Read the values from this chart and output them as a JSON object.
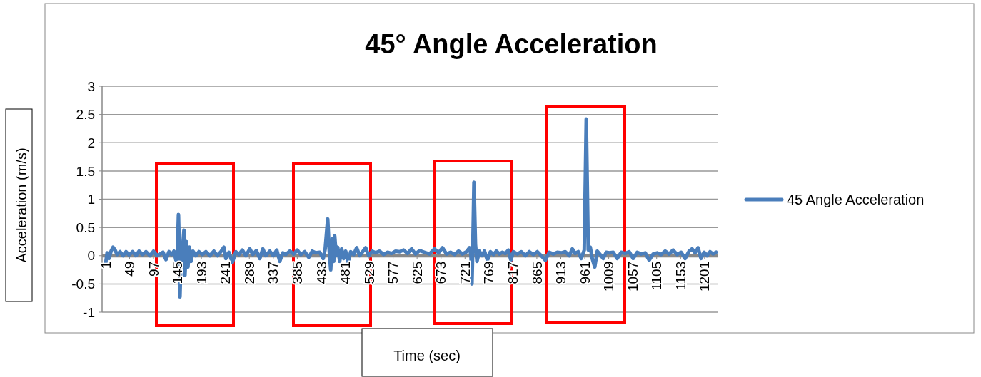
{
  "chart_data": {
    "type": "line",
    "title": "45° Angle Acceleration",
    "xlabel": "Time (sec)",
    "ylabel": "Acceleration (m/s)",
    "xlim": [
      -6,
      1227
    ],
    "xticks": [
      1,
      49,
      97,
      145,
      193,
      241,
      289,
      337,
      385,
      433,
      481,
      529,
      577,
      625,
      673,
      721,
      769,
      817,
      865,
      913,
      961,
      1009,
      1057,
      1105,
      1153,
      1201
    ],
    "ylim": [
      -1,
      3
    ],
    "yticks": [
      -1,
      -0.5,
      0,
      0.5,
      1,
      1.5,
      2,
      2.5,
      3
    ],
    "grid": "y",
    "legend": "right",
    "line_style": "solid",
    "series": [
      {
        "name": "45 Angle Acceleration",
        "color": "#4a7ebb",
        "x": [
          1,
          4,
          8,
          12,
          16,
          20,
          24,
          30,
          36,
          42,
          48,
          55,
          62,
          68,
          75,
          82,
          90,
          97,
          104,
          110,
          116,
          122,
          128,
          133,
          138,
          142,
          145,
          147,
          149,
          150,
          152,
          155,
          158,
          160,
          163,
          166,
          169,
          172,
          176,
          182,
          188,
          195,
          202,
          210,
          218,
          225,
          232,
          238,
          242,
          248,
          255,
          262,
          268,
          275,
          282,
          290,
          296,
          303,
          310,
          316,
          322,
          330,
          337,
          344,
          350,
          356,
          362,
          370,
          378,
          385,
          392,
          400,
          408,
          415,
          422,
          430,
          437,
          441,
          446,
          449,
          452,
          455,
          458,
          460,
          463,
          466,
          470,
          474,
          478,
          482,
          487,
          492,
          498,
          504,
          510,
          516,
          522,
          528,
          535,
          542,
          550,
          558,
          566,
          574,
          582,
          590,
          598,
          606,
          614,
          622,
          630,
          640,
          650,
          660,
          668,
          676,
          684,
          692,
          700,
          708,
          716,
          724,
          730,
          733,
          735,
          737,
          739,
          742,
          745,
          750,
          755,
          760,
          766,
          772,
          778,
          784,
          790,
          796,
          802,
          808,
          813,
          818,
          826,
          834,
          842,
          850,
          858,
          866,
          874,
          882,
          890,
          898,
          906,
          914,
          922,
          930,
          936,
          942,
          948,
          954,
          960,
          964,
          968,
          972,
          976,
          981,
          986,
          992,
          998,
          1004,
          1010,
          1018,
          1026,
          1034,
          1042,
          1050,
          1058,
          1066,
          1074,
          1082,
          1090,
          1098,
          1106,
          1114,
          1122,
          1130,
          1138,
          1146,
          1154,
          1162,
          1170,
          1176,
          1182,
          1188,
          1194,
          1200,
          1206,
          1212,
          1218,
          1224
        ],
        "values": [
          -0.15,
          0.05,
          -0.05,
          0.08,
          0.15,
          0.1,
          0.02,
          0.07,
          0,
          0.07,
          0.01,
          0.07,
          0,
          0.08,
          0.02,
          0.07,
          0,
          0.08,
          0,
          0.03,
          0.06,
          -0.07,
          0.07,
          0.02,
          0.08,
          -0.08,
          0.1,
          0.73,
          0,
          -0.73,
          -0.1,
          0.1,
          0.45,
          -0.35,
          0.25,
          -0.2,
          0.15,
          -0.1,
          0.08,
          0,
          0.07,
          0.02,
          0.07,
          0,
          0.08,
          0,
          0.07,
          0.15,
          -0.05,
          0.06,
          -0.12,
          0.07,
          0.02,
          0.1,
          0,
          0.12,
          0.02,
          0.09,
          -0.05,
          0.12,
          0,
          0.08,
          0,
          0.1,
          -0.1,
          0.05,
          0.02,
          0.08,
          0.03,
          0.1,
          0.02,
          0.07,
          -0.03,
          0.08,
          0.05,
          0.06,
          -0.05,
          0.12,
          0.65,
          0.1,
          -0.25,
          0.3,
          -0.1,
          0.35,
          0,
          0.15,
          -0.1,
          0.12,
          -0.05,
          0.08,
          -0.12,
          0.07,
          0.02,
          0.14,
          0,
          0.07,
          0.14,
          0,
          0.08,
          0.05,
          0.08,
          0.02,
          0.06,
          0.04,
          0.08,
          0.07,
          0.1,
          0.04,
          0.12,
          0.03,
          0.09,
          0.06,
          0.03,
          0.12,
          0.05,
          0.14,
          0.03,
          0.06,
          0.02,
          0.08,
          0.03,
          0.07,
          0.14,
          0,
          -0.5,
          0.3,
          1.3,
          0.2,
          -0.1,
          0.08,
          0,
          0.08,
          -0.08,
          0.07,
          0.02,
          0.08,
          0.03,
          0.06,
          0.04,
          0.1,
          -0.08,
          0.07,
          0.03,
          0.07,
          0,
          0.07,
          0.02,
          0.07,
          0,
          -0.08,
          0.06,
          0.03,
          0.06,
          0.05,
          0.07,
          0,
          0.12,
          0.04,
          0.07,
          -0.05,
          0.1,
          2.42,
          0.1,
          0.15,
          -0.05,
          -0.2,
          0.08,
          0.02,
          -0.05,
          0.06,
          0.05,
          0.06,
          -0.05,
          0.06,
          0.04,
          0.07,
          -0.05,
          0.06,
          0.03,
          0.05,
          -0.08,
          0.03,
          0.05,
          0.02,
          0.08,
          0.03,
          0.1,
          0.02,
          0.06,
          -0.05,
          0.08,
          0.12,
          0.05,
          0.14,
          -0.05,
          0.06,
          0,
          0.07,
          0.03,
          0.06
        ]
      }
    ]
  }
}
